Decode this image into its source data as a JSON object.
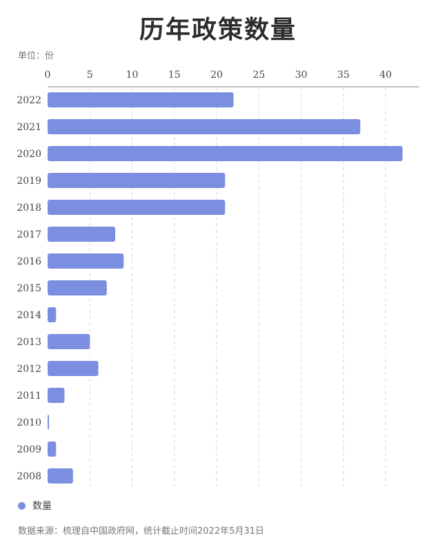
{
  "title": "历年政策数量",
  "unit_label": "单位：份",
  "source_note": "数据来源：梳理自中国政府网，统计截止时间2022年5月31日",
  "colors": {
    "bar": "#7b8ee0",
    "grid": "#d7d7d7",
    "axis": "#8a8a8a",
    "text": "#444444"
  },
  "chart_data": {
    "type": "bar",
    "orientation": "horizontal",
    "title": "历年政策数量",
    "xlabel": "",
    "ylabel": "",
    "unit": "单位：份",
    "xlim": [
      0,
      44
    ],
    "xticks": [
      0,
      5,
      10,
      15,
      20,
      25,
      30,
      35,
      40
    ],
    "grid": true,
    "legend_position": "bottom-left",
    "categories": [
      "2022",
      "2021",
      "2020",
      "2019",
      "2018",
      "2017",
      "2016",
      "2015",
      "2014",
      "2013",
      "2012",
      "2011",
      "2010",
      "2009",
      "2008"
    ],
    "series": [
      {
        "name": "数量",
        "values": [
          22,
          37,
          42,
          21,
          21,
          8,
          9,
          7,
          1,
          5,
          6,
          2,
          0,
          1,
          3
        ]
      }
    ]
  }
}
